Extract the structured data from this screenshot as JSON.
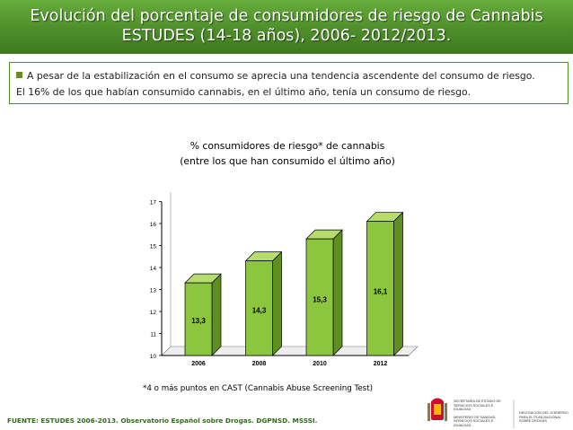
{
  "title": {
    "line1": "Evolución del porcentaje de consumidores de riesgo de Cannabis",
    "line2": "ESTUDES (14-18 años), 2006- 2012/2013."
  },
  "summary": {
    "line1": "A pesar de la estabilización en el consumo se aprecia una tendencia ascendente del consumo de riesgo.",
    "line2": "El 16% de los que habían consumido cannabis, en el último año, tenía un consumo de riesgo."
  },
  "footnote": "*4 o más puntos en CAST (Cannabis Abuse Screening Test)",
  "source": "FUENTE: ESTUDES 2006-2013. Observatorio Español sobre Drogas. DGPNSD. MSSSI.",
  "logo": {
    "ministry_text": "SECRETARÍA DE ESTADO DE SERVICIOS SOCIALES E IGUALDAD",
    "ministry_main": "MINISTERIO DE SANIDAD, SERVICIOS SOCIALES E IGUALDAD",
    "plan_text": "DELEGACIÓN DEL GOBIERNO PARA EL PLAN NACIONAL SOBRE DROGAS"
  },
  "colors": {
    "title_green": "#4e8e2a",
    "bar_front": "#8cc63f",
    "bar_side": "#5f8f23",
    "bar_top": "#b6dc6e",
    "source_text": "#2f6e1a"
  },
  "chart_data": {
    "type": "bar",
    "title": "% consumidores de riesgo* de cannabis",
    "subtitle": "(entre los que han consumido el último año)",
    "categories": [
      "2006",
      "2008",
      "2010",
      "2012"
    ],
    "values": [
      13.3,
      14.3,
      15.3,
      16.1
    ],
    "value_labels": [
      "13,3",
      "14,3",
      "15,3",
      "16,1"
    ],
    "yticks": [
      "10",
      "11",
      "12",
      "13",
      "14",
      "15",
      "16",
      "17"
    ],
    "ylim": [
      10,
      17
    ],
    "xlabel": "",
    "ylabel": "",
    "style": "3d",
    "grid": false,
    "legend": "none"
  }
}
